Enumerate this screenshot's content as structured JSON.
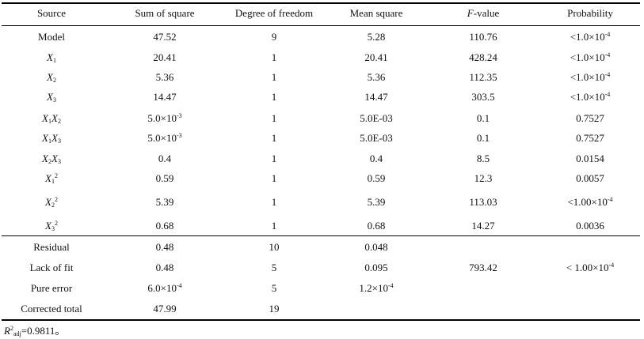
{
  "table": {
    "headers": [
      "Source",
      "Sum of square",
      "Degree of freedom",
      "Mean square",
      "F-value",
      "Probability"
    ],
    "header_f_letter": "F",
    "header_f_suffix": "-value",
    "rows": [
      {
        "source": "Model",
        "ss": "47.52",
        "df": "9",
        "ms": "5.28",
        "f": "110.76",
        "p": "<1.0×10-4"
      },
      {
        "source": "X1",
        "ss": "20.41",
        "df": "1",
        "ms": "20.41",
        "f": "428.24",
        "p": "<1.0×10-4"
      },
      {
        "source": "X2",
        "ss": "5.36",
        "df": "1",
        "ms": "5.36",
        "f": "112.35",
        "p": "<1.0×10-4"
      },
      {
        "source": "X3",
        "ss": "14.47",
        "df": "1",
        "ms": "14.47",
        "f": "303.5",
        "p": "<1.0×10-4"
      },
      {
        "source": "X1X2",
        "ss": "5.0×10-3",
        "df": "1",
        "ms": "5.0E-03",
        "f": "0.1",
        "p": "0.7527"
      },
      {
        "source": "X1X3",
        "ss": "5.0×10-3",
        "df": "1",
        "ms": "5.0E-03",
        "f": "0.1",
        "p": "0.7527"
      },
      {
        "source": "X2X3",
        "ss": "0.4",
        "df": "1",
        "ms": "0.4",
        "f": "8.5",
        "p": "0.0154"
      },
      {
        "source": "X12",
        "ss": "0.59",
        "df": "1",
        "ms": "0.59",
        "f": "12.3",
        "p": "0.0057"
      },
      {
        "source": "X22",
        "ss": "5.39",
        "df": "1",
        "ms": "5.39",
        "f": "113.03",
        "p": "<1.00×10-4"
      },
      {
        "source": "X32",
        "ss": "0.68",
        "df": "1",
        "ms": "0.68",
        "f": "14.27",
        "p": "0.0036"
      },
      {
        "source": "Residual",
        "ss": "0.48",
        "df": "10",
        "ms": "0.048",
        "f": "",
        "p": ""
      },
      {
        "source": "Lack of fit",
        "ss": "0.48",
        "df": "5",
        "ms": "0.095",
        "f": "793.42",
        "p": "< 1.00×10-4"
      },
      {
        "source": "Pure error",
        "ss": "6.0×10-4",
        "df": "5",
        "ms": "1.2×10-4",
        "f": "",
        "p": ""
      },
      {
        "source": "Corrected total",
        "ss": "47.99",
        "df": "19",
        "ms": "",
        "f": "",
        "p": ""
      }
    ]
  },
  "footnote": "R2adj=0.9811。"
}
